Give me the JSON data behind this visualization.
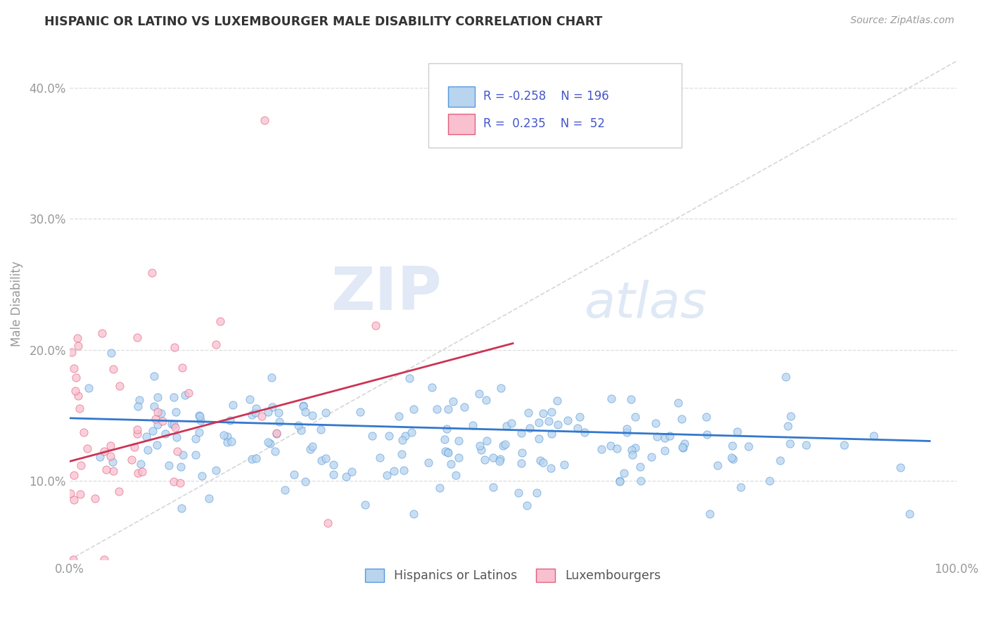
{
  "title": "HISPANIC OR LATINO VS LUXEMBOURGER MALE DISABILITY CORRELATION CHART",
  "source": "Source: ZipAtlas.com",
  "ylabel": "Male Disability",
  "blue_R": -0.258,
  "blue_N": 196,
  "pink_R": 0.235,
  "pink_N": 52,
  "blue_fill_color": "#b8d4ee",
  "blue_edge_color": "#5599dd",
  "pink_fill_color": "#f9c0d0",
  "pink_edge_color": "#e0607a",
  "blue_line_color": "#3377cc",
  "pink_line_color": "#cc3355",
  "watermark_zip": "ZIP",
  "watermark_atlas": "atlas",
  "legend_label_blue": "Hispanics or Latinos",
  "legend_label_pink": "Luxembourgers",
  "yticks": [
    0.1,
    0.2,
    0.3,
    0.4
  ],
  "ytick_labels": [
    "10.0%",
    "20.0%",
    "30.0%",
    "40.0%"
  ],
  "xlim": [
    0.0,
    1.0
  ],
  "ylim": [
    0.04,
    0.43
  ],
  "title_color": "#333333",
  "axis_color": "#999999",
  "grid_color": "#dddddd",
  "legend_text_color": "#4455cc",
  "diag_color": "#cccccc",
  "blue_seed": 12,
  "pink_seed": 99
}
